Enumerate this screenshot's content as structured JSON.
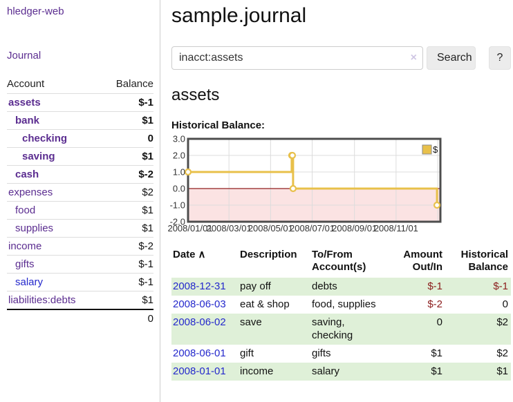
{
  "app": {
    "title": "hledger-web"
  },
  "colors": {
    "link_purple": "#5b2d90",
    "link_blue": "#2428cc",
    "negative_strong": "#8b1c1c",
    "negative_soft": "#b05d5d",
    "row_green": "#dff0d8",
    "chart_line": "#e8c04a",
    "chart_negative_region": "#fbe3e3",
    "chart_zero_line": "#8f1d1d"
  },
  "sidebar": {
    "journal_link": "Journal",
    "accounts_table": {
      "headers": {
        "account": "Account",
        "balance": "Balance"
      },
      "rows": [
        {
          "name": "assets",
          "indent": 1,
          "bold": true,
          "balance": "$-1",
          "negative": "strong"
        },
        {
          "name": "bank",
          "indent": 2,
          "bold": true,
          "balance": "$1"
        },
        {
          "name": "checking",
          "indent": 3,
          "bold": true,
          "balance": "0"
        },
        {
          "name": "saving",
          "indent": 3,
          "bold": true,
          "balance": "$1"
        },
        {
          "name": "cash",
          "indent": 2,
          "bold": true,
          "balance": "$-2",
          "negative": "strong"
        },
        {
          "name": "expenses",
          "indent": 1,
          "bold": false,
          "balance": "$2"
        },
        {
          "name": "food",
          "indent": 2,
          "bold": false,
          "balance": "$1"
        },
        {
          "name": "supplies",
          "indent": 2,
          "bold": false,
          "balance": "$1"
        },
        {
          "name": "income",
          "indent": 1,
          "bold": false,
          "balance": "$-2",
          "negative": "soft"
        },
        {
          "name": "gifts",
          "indent": 2,
          "bold": false,
          "balance": "$-1",
          "negative": "soft"
        },
        {
          "name": "salary",
          "indent": 2,
          "bold": false,
          "balance": "$-1",
          "negative": "soft",
          "link_color": "blue"
        },
        {
          "name": "liabilities:debts",
          "indent": 1,
          "bold": false,
          "balance": "$1"
        }
      ],
      "total": "0"
    }
  },
  "header": {
    "title": "sample.journal"
  },
  "search": {
    "value": "inacct:assets",
    "clear_icon": "×",
    "button": "Search",
    "help_button": "?"
  },
  "account_page": {
    "title": "assets",
    "chart_label": "Historical Balance:"
  },
  "chart_data": {
    "type": "line",
    "step": true,
    "title": "Historical Balance:",
    "xlabel": "",
    "ylabel": "",
    "x_domain": [
      "2008/01/01",
      "2009/01/05"
    ],
    "x_ticks": [
      "2008/01/01",
      "2008/03/01",
      "2008/05/01",
      "2008/07/01",
      "2008/09/01",
      "2008/11/01",
      "2009/01/01"
    ],
    "x_tick_labels_shown": 6,
    "y_ticks": [
      3.0,
      2.0,
      1.0,
      0.0,
      -1.0,
      -2.0
    ],
    "ylim": [
      -2,
      3
    ],
    "grid": true,
    "legend_position": "top-right",
    "legend_label": "$",
    "series": [
      {
        "name": "$",
        "color": "#e8c04a",
        "points": [
          [
            "2008/01/01",
            1
          ],
          [
            "2008/06/01",
            2
          ],
          [
            "2008/06/02",
            2
          ],
          [
            "2008/06/03",
            0
          ],
          [
            "2008/12/31",
            -1
          ]
        ]
      }
    ],
    "negative_region_fill": "#fbe3e3",
    "zero_line_color": "#8f1d1d",
    "plot_border_color": "#4d4d4d",
    "grid_color": "#dcdcdc"
  },
  "register": {
    "columns": {
      "date": {
        "label": "Date",
        "sort_indicator": "∧"
      },
      "description": "Description",
      "accounts": {
        "line1": "To/From",
        "line2": "Account(s)"
      },
      "amount": {
        "line1": "Amount",
        "line2": "Out/In"
      },
      "balance": {
        "line1": "Historical",
        "line2": "Balance"
      }
    },
    "rows": [
      {
        "date": "2008-12-31",
        "description": "pay off",
        "accounts": "debts",
        "amount": "$-1",
        "amount_negative": true,
        "balance": "$-1",
        "balance_negative": true
      },
      {
        "date": "2008-06-03",
        "description": "eat & shop",
        "accounts": "food, supplies",
        "amount": "$-2",
        "amount_negative": true,
        "balance": "0",
        "balance_negative": false
      },
      {
        "date": "2008-06-02",
        "description": "save",
        "accounts": "saving, checking",
        "amount": "0",
        "amount_negative": false,
        "balance": "$2",
        "balance_negative": false
      },
      {
        "date": "2008-06-01",
        "description": "gift",
        "accounts": "gifts",
        "amount": "$1",
        "amount_negative": false,
        "balance": "$2",
        "balance_negative": false
      },
      {
        "date": "2008-01-01",
        "description": "income",
        "accounts": "salary",
        "amount": "$1",
        "amount_negative": false,
        "balance": "$1",
        "balance_negative": false
      }
    ]
  }
}
